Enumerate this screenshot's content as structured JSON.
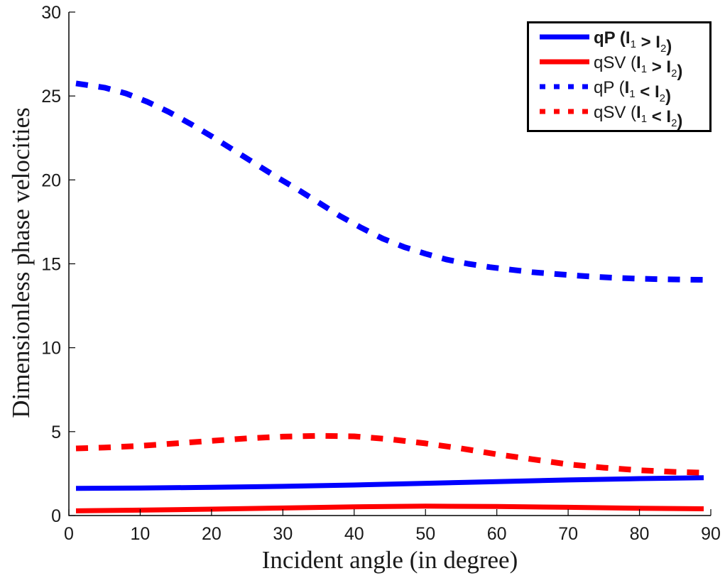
{
  "chart_data": {
    "type": "line",
    "title": "",
    "xlabel": "Incident angle (in degree)",
    "ylabel": "Dimensionless phase velocities",
    "xlim": [
      0,
      90
    ],
    "ylim": [
      0,
      30
    ],
    "xticks": [
      0,
      10,
      20,
      30,
      40,
      50,
      60,
      70,
      80,
      90
    ],
    "yticks": [
      0,
      5,
      10,
      15,
      20,
      25,
      30
    ],
    "xtick_labels": [
      "0",
      "10",
      "20",
      "30",
      "40",
      "50",
      "60",
      "70",
      "80",
      "90"
    ],
    "ytick_labels": [
      "0",
      "5",
      "10",
      "15",
      "20",
      "25",
      "30"
    ],
    "grid": false,
    "legend_position": "top-right",
    "series": [
      {
        "name": "qP (I1 > I2)",
        "legend": {
          "prefix": "qP (",
          "a": "I",
          "a_sub": "1",
          "op": " > ",
          "b": "I",
          "b_sub": "2",
          "suffix": ")"
        },
        "color": "#0000ff",
        "style": "solid",
        "x": [
          1,
          10,
          20,
          30,
          40,
          50,
          60,
          70,
          80,
          89
        ],
        "y": [
          1.62,
          1.64,
          1.68,
          1.74,
          1.82,
          1.92,
          2.02,
          2.12,
          2.2,
          2.25
        ]
      },
      {
        "name": "qSV (I1 > I2)",
        "legend": {
          "prefix": "qSV (",
          "a": "I",
          "a_sub": "1",
          "op": " > ",
          "b": "I",
          "b_sub": "2",
          "suffix": ")"
        },
        "color": "#ff0000",
        "style": "solid",
        "x": [
          1,
          10,
          20,
          30,
          40,
          50,
          60,
          70,
          80,
          89
        ],
        "y": [
          0.28,
          0.32,
          0.38,
          0.45,
          0.52,
          0.56,
          0.54,
          0.49,
          0.43,
          0.4
        ]
      },
      {
        "name": "qP (I1 < I2)",
        "legend": {
          "prefix": "qP (",
          "a": "I",
          "a_sub": "1",
          "op": " < ",
          "b": "I",
          "b_sub": "2",
          "suffix": ")"
        },
        "color": "#0000ff",
        "style": "dashed",
        "x": [
          1,
          5,
          8,
          11,
          14,
          17,
          20,
          23,
          26,
          29,
          32,
          35,
          38,
          41,
          44,
          47,
          50,
          53,
          56,
          59,
          62,
          65,
          68,
          71,
          74,
          77,
          80,
          83,
          86,
          89
        ],
        "y": [
          25.75,
          25.5,
          25.15,
          24.65,
          24.05,
          23.35,
          22.6,
          21.8,
          21.0,
          20.2,
          19.45,
          18.65,
          17.85,
          17.15,
          16.5,
          16.0,
          15.6,
          15.25,
          15.0,
          14.8,
          14.65,
          14.5,
          14.4,
          14.3,
          14.22,
          14.16,
          14.11,
          14.08,
          14.06,
          14.05
        ]
      },
      {
        "name": "qSV (I1 < I2)",
        "legend": {
          "prefix": "qSV (",
          "a": "I",
          "a_sub": "1",
          "op": " < ",
          "b": "I",
          "b_sub": "2",
          "suffix": ")"
        },
        "color": "#ff0000",
        "style": "dashed",
        "x": [
          1,
          5,
          10,
          15,
          20,
          25,
          30,
          35,
          40,
          45,
          50,
          55,
          60,
          65,
          70,
          75,
          80,
          85,
          89
        ],
        "y": [
          4.0,
          4.05,
          4.15,
          4.3,
          4.45,
          4.6,
          4.7,
          4.75,
          4.72,
          4.55,
          4.3,
          4.0,
          3.65,
          3.35,
          3.05,
          2.85,
          2.7,
          2.6,
          2.55
        ]
      }
    ]
  }
}
